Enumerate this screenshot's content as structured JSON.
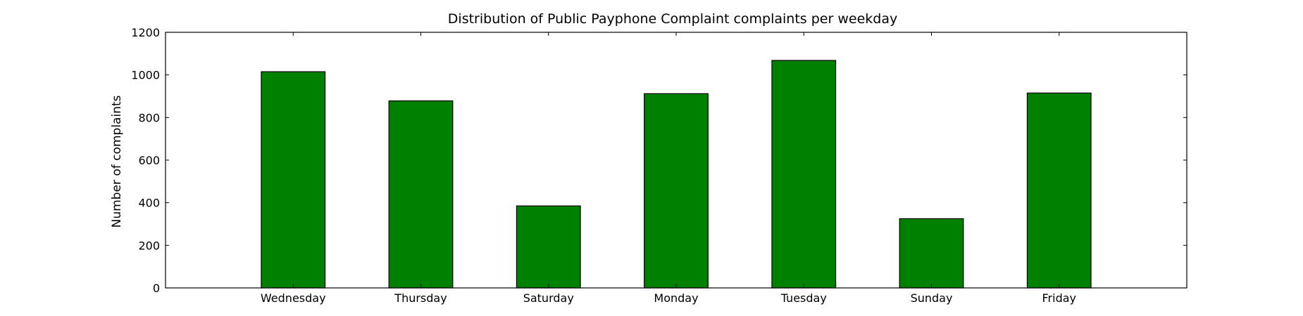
{
  "chart_data": {
    "type": "bar",
    "title": "Distribution of  Public Payphone Complaint complaints per weekday",
    "xlabel": "",
    "ylabel": "Number of complaints",
    "categories": [
      "Wednesday",
      "Thursday",
      "Saturday",
      "Monday",
      "Tuesday",
      "Sunday",
      "Friday"
    ],
    "values": [
      1015,
      878,
      385,
      912,
      1068,
      325,
      915
    ],
    "ylim": [
      0,
      1200
    ],
    "yticks": [
      0,
      200,
      400,
      600,
      800,
      1000,
      1200
    ],
    "bar_color": "#008000",
    "grid": false,
    "legend": "none"
  }
}
